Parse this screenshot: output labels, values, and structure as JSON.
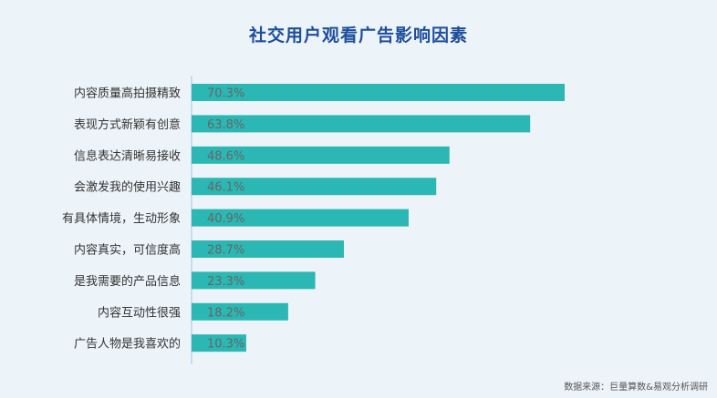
{
  "chart_data": {
    "type": "bar",
    "orientation": "horizontal",
    "title": "社交用户观看广告影响因素",
    "categories": [
      "内容质量高拍摄精致",
      "表现方式新颖有创意",
      "信息表达清晰易接收",
      "会激发我的使用兴趣",
      "有具体情境，生动形象",
      "内容真实，可信度高",
      "是我需要的产品信息",
      "内容互动性很强",
      "广告人物是我喜欢的"
    ],
    "values": [
      70.3,
      63.8,
      48.6,
      46.1,
      40.9,
      28.7,
      23.3,
      18.2,
      10.3
    ],
    "value_labels": [
      "70.3%",
      "63.8%",
      "48.6%",
      "46.1%",
      "40.9%",
      "28.7%",
      "23.3%",
      "18.2%",
      "10.3%"
    ],
    "xlim": [
      0,
      70.3
    ],
    "bar_color": "#2bb7b3",
    "grid": false
  },
  "source": "数据来源：巨量算数&易观分析调研"
}
